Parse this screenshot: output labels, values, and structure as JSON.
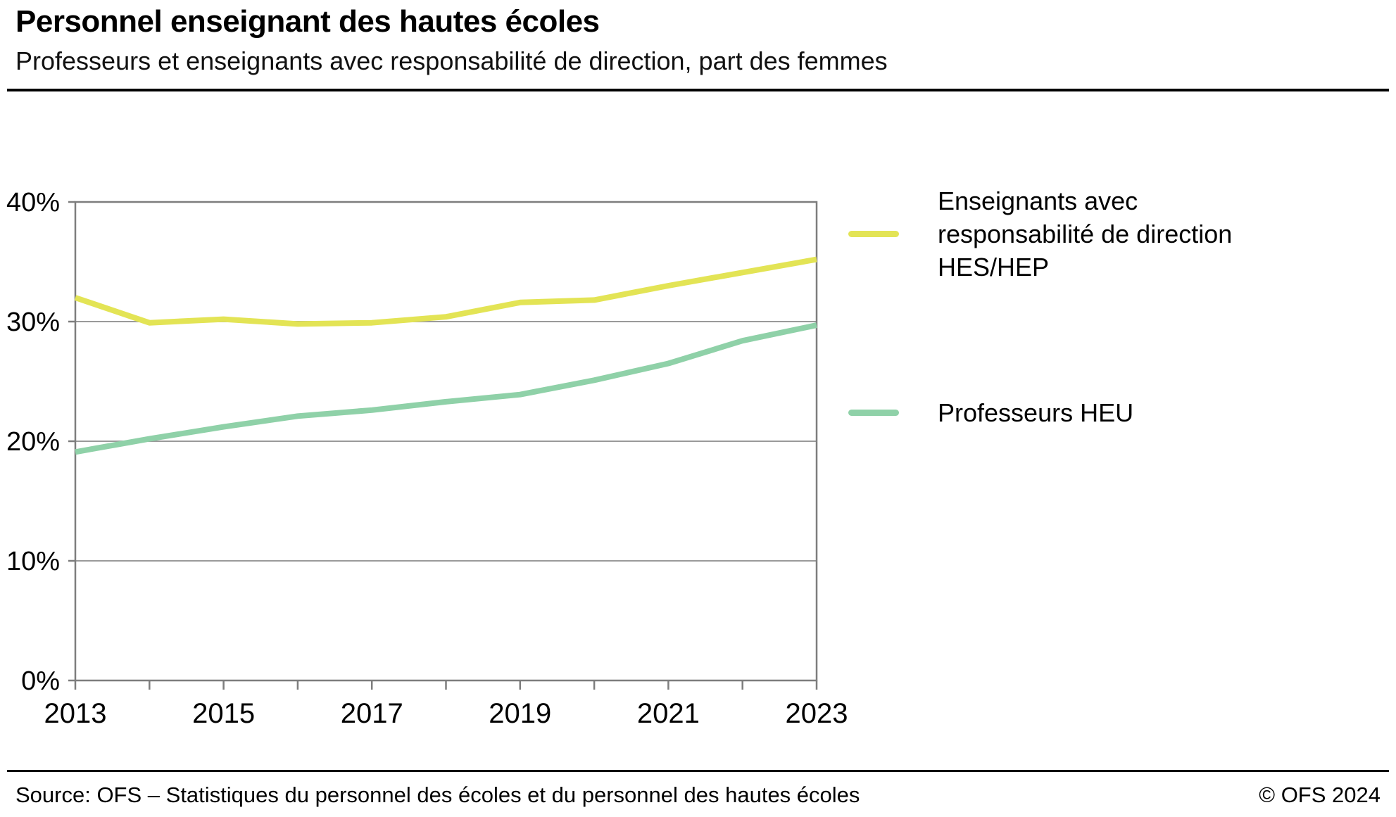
{
  "header": {
    "title": "Personnel enseignant des hautes écoles",
    "subtitle": "Professeurs et enseignants avec responsabilité de direction, part des femmes"
  },
  "chart_data": {
    "type": "line",
    "x": [
      2013,
      2014,
      2015,
      2016,
      2017,
      2018,
      2019,
      2020,
      2021,
      2022,
      2023
    ],
    "series": [
      {
        "name": "Enseignants avec responsabilité de direction HES/HEP",
        "color": "#e3e455",
        "values": [
          32.0,
          29.9,
          30.2,
          29.8,
          29.9,
          30.4,
          31.6,
          31.8,
          33.0,
          34.1,
          35.2
        ]
      },
      {
        "name": "Professeurs HEU",
        "color": "#8fd1a8",
        "values": [
          19.1,
          20.2,
          21.2,
          22.1,
          22.6,
          23.3,
          23.9,
          25.1,
          26.5,
          28.4,
          29.7
        ]
      }
    ],
    "ylim": [
      0,
      40
    ],
    "yticks": [
      0,
      10,
      20,
      30,
      40
    ],
    "ytick_labels": [
      "0%",
      "10%",
      "20%",
      "30%",
      "40%"
    ],
    "xticks": [
      2013,
      2015,
      2017,
      2019,
      2021,
      2023
    ],
    "xtick_labels": [
      "2013",
      "2015",
      "2017",
      "2019",
      "2021",
      "2023"
    ],
    "grid": true,
    "legend_position": "right",
    "colors": {
      "grid": "#9a9a9a",
      "frame": "#7d7d7d",
      "text": "#000000"
    }
  },
  "footer": {
    "source": "Source: OFS – Statistiques du personnel des écoles et du personnel des hautes écoles",
    "copyright": "© OFS 2024"
  }
}
